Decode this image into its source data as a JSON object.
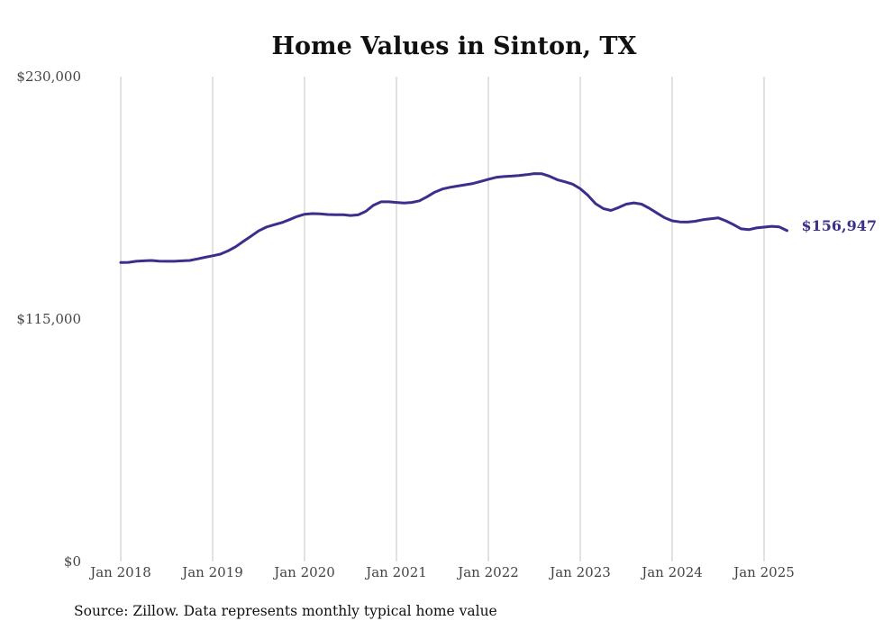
{
  "chart_data": {
    "type": "line",
    "title": "Home Values in Sinton, TX",
    "subtitle": "",
    "xlabel": "",
    "ylabel": "",
    "source": "Source: Zillow. Data represents monthly typical home value",
    "x_tick_labels": [
      "Jan 2018",
      "Jan 2019",
      "Jan 2020",
      "Jan 2021",
      "Jan 2022",
      "Jan 2023",
      "Jan 2024",
      "Jan 2025"
    ],
    "y_tick_labels": [
      "$0",
      "$115,000",
      "$230,000"
    ],
    "y_ticks": [
      0,
      115000,
      230000
    ],
    "ylim": [
      0,
      230000
    ],
    "x_range": [
      "2018-01",
      "2025-04"
    ],
    "grid": "vertical gridlines at each January",
    "legend": "none",
    "end_label": "$156,947",
    "line_color": "#3b2f8c",
    "series": [
      {
        "values": [
          [
            "2018-01",
            141800
          ],
          [
            "2018-02",
            141900
          ],
          [
            "2018-03",
            142400
          ],
          [
            "2018-04",
            142600
          ],
          [
            "2018-05",
            142800
          ],
          [
            "2018-06",
            142500
          ],
          [
            "2018-07",
            142400
          ],
          [
            "2018-08",
            142400
          ],
          [
            "2018-09",
            142600
          ],
          [
            "2018-10",
            142800
          ],
          [
            "2018-11",
            143500
          ],
          [
            "2018-12",
            144300
          ],
          [
            "2019-01",
            145000
          ],
          [
            "2019-02",
            145800
          ],
          [
            "2019-03",
            147300
          ],
          [
            "2019-04",
            149300
          ],
          [
            "2019-05",
            151800
          ],
          [
            "2019-06",
            154300
          ],
          [
            "2019-07",
            156800
          ],
          [
            "2019-08",
            158600
          ],
          [
            "2019-09",
            159700
          ],
          [
            "2019-10",
            160700
          ],
          [
            "2019-11",
            162100
          ],
          [
            "2019-12",
            163600
          ],
          [
            "2020-01",
            164700
          ],
          [
            "2020-02",
            165000
          ],
          [
            "2020-03",
            164900
          ],
          [
            "2020-04",
            164600
          ],
          [
            "2020-05",
            164500
          ],
          [
            "2020-06",
            164500
          ],
          [
            "2020-07",
            164100
          ],
          [
            "2020-08",
            164400
          ],
          [
            "2020-09",
            166100
          ],
          [
            "2020-10",
            169000
          ],
          [
            "2020-11",
            170600
          ],
          [
            "2020-12",
            170600
          ],
          [
            "2021-01",
            170300
          ],
          [
            "2021-02",
            170000
          ],
          [
            "2021-03",
            170300
          ],
          [
            "2021-04",
            171100
          ],
          [
            "2021-05",
            173000
          ],
          [
            "2021-06",
            175200
          ],
          [
            "2021-07",
            176700
          ],
          [
            "2021-08",
            177500
          ],
          [
            "2021-09",
            178100
          ],
          [
            "2021-10",
            178700
          ],
          [
            "2021-11",
            179300
          ],
          [
            "2021-12",
            180300
          ],
          [
            "2022-01",
            181300
          ],
          [
            "2022-02",
            182200
          ],
          [
            "2022-03",
            182600
          ],
          [
            "2022-04",
            182800
          ],
          [
            "2022-05",
            183100
          ],
          [
            "2022-06",
            183500
          ],
          [
            "2022-07",
            184000
          ],
          [
            "2022-08",
            183900
          ],
          [
            "2022-09",
            182700
          ],
          [
            "2022-10",
            181100
          ],
          [
            "2022-11",
            180100
          ],
          [
            "2022-12",
            179000
          ],
          [
            "2023-01",
            176800
          ],
          [
            "2023-02",
            173700
          ],
          [
            "2023-03",
            169700
          ],
          [
            "2023-04",
            167400
          ],
          [
            "2023-05",
            166500
          ],
          [
            "2023-06",
            167900
          ],
          [
            "2023-07",
            169500
          ],
          [
            "2023-08",
            170100
          ],
          [
            "2023-09",
            169500
          ],
          [
            "2023-10",
            167600
          ],
          [
            "2023-11",
            165300
          ],
          [
            "2023-12",
            163100
          ],
          [
            "2024-01",
            161600
          ],
          [
            "2024-02",
            161100
          ],
          [
            "2024-03",
            161000
          ],
          [
            "2024-04",
            161400
          ],
          [
            "2024-05",
            162100
          ],
          [
            "2024-06",
            162600
          ],
          [
            "2024-07",
            163000
          ],
          [
            "2024-08",
            161600
          ],
          [
            "2024-09",
            159800
          ],
          [
            "2024-10",
            157800
          ],
          [
            "2024-11",
            157400
          ],
          [
            "2024-12",
            158200
          ],
          [
            "2025-01",
            158600
          ],
          [
            "2025-02",
            159000
          ],
          [
            "2025-03",
            158700
          ],
          [
            "2025-04",
            156947
          ]
        ]
      }
    ]
  }
}
